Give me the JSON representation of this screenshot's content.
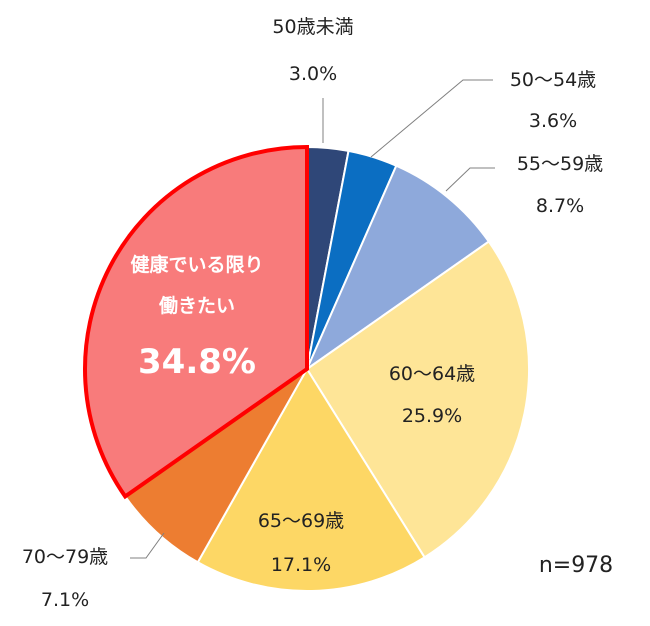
{
  "chart_data": {
    "type": "pie",
    "start": "top, clockwise",
    "slices": [
      {
        "label": "50歳未満",
        "value": 3.0,
        "value_text": "3.0%",
        "color": "#2F4778"
      },
      {
        "label": "50～54歳",
        "value": 3.6,
        "value_text": "3.6%",
        "color": "#0B6EC2"
      },
      {
        "label": "55～59歳",
        "value": 8.7,
        "value_text": "8.7%",
        "color": "#8EA9DB"
      },
      {
        "label": "60～64歳",
        "value": 25.9,
        "value_text": "25.9%",
        "color": "#FEE597"
      },
      {
        "label": "65～69歳",
        "value": 17.1,
        "value_text": "17.1%",
        "color": "#FDD765"
      },
      {
        "label": "70～79歳",
        "value": 7.1,
        "value_text": "7.1%",
        "color": "#ED7D31"
      },
      {
        "label_line1": "健康でいる限り",
        "label_line2": "働きたい",
        "value": 34.8,
        "value_text": "34.8%",
        "color": "#F87B7B",
        "highlight_color": "#FF0000"
      }
    ],
    "note": "n=978"
  }
}
